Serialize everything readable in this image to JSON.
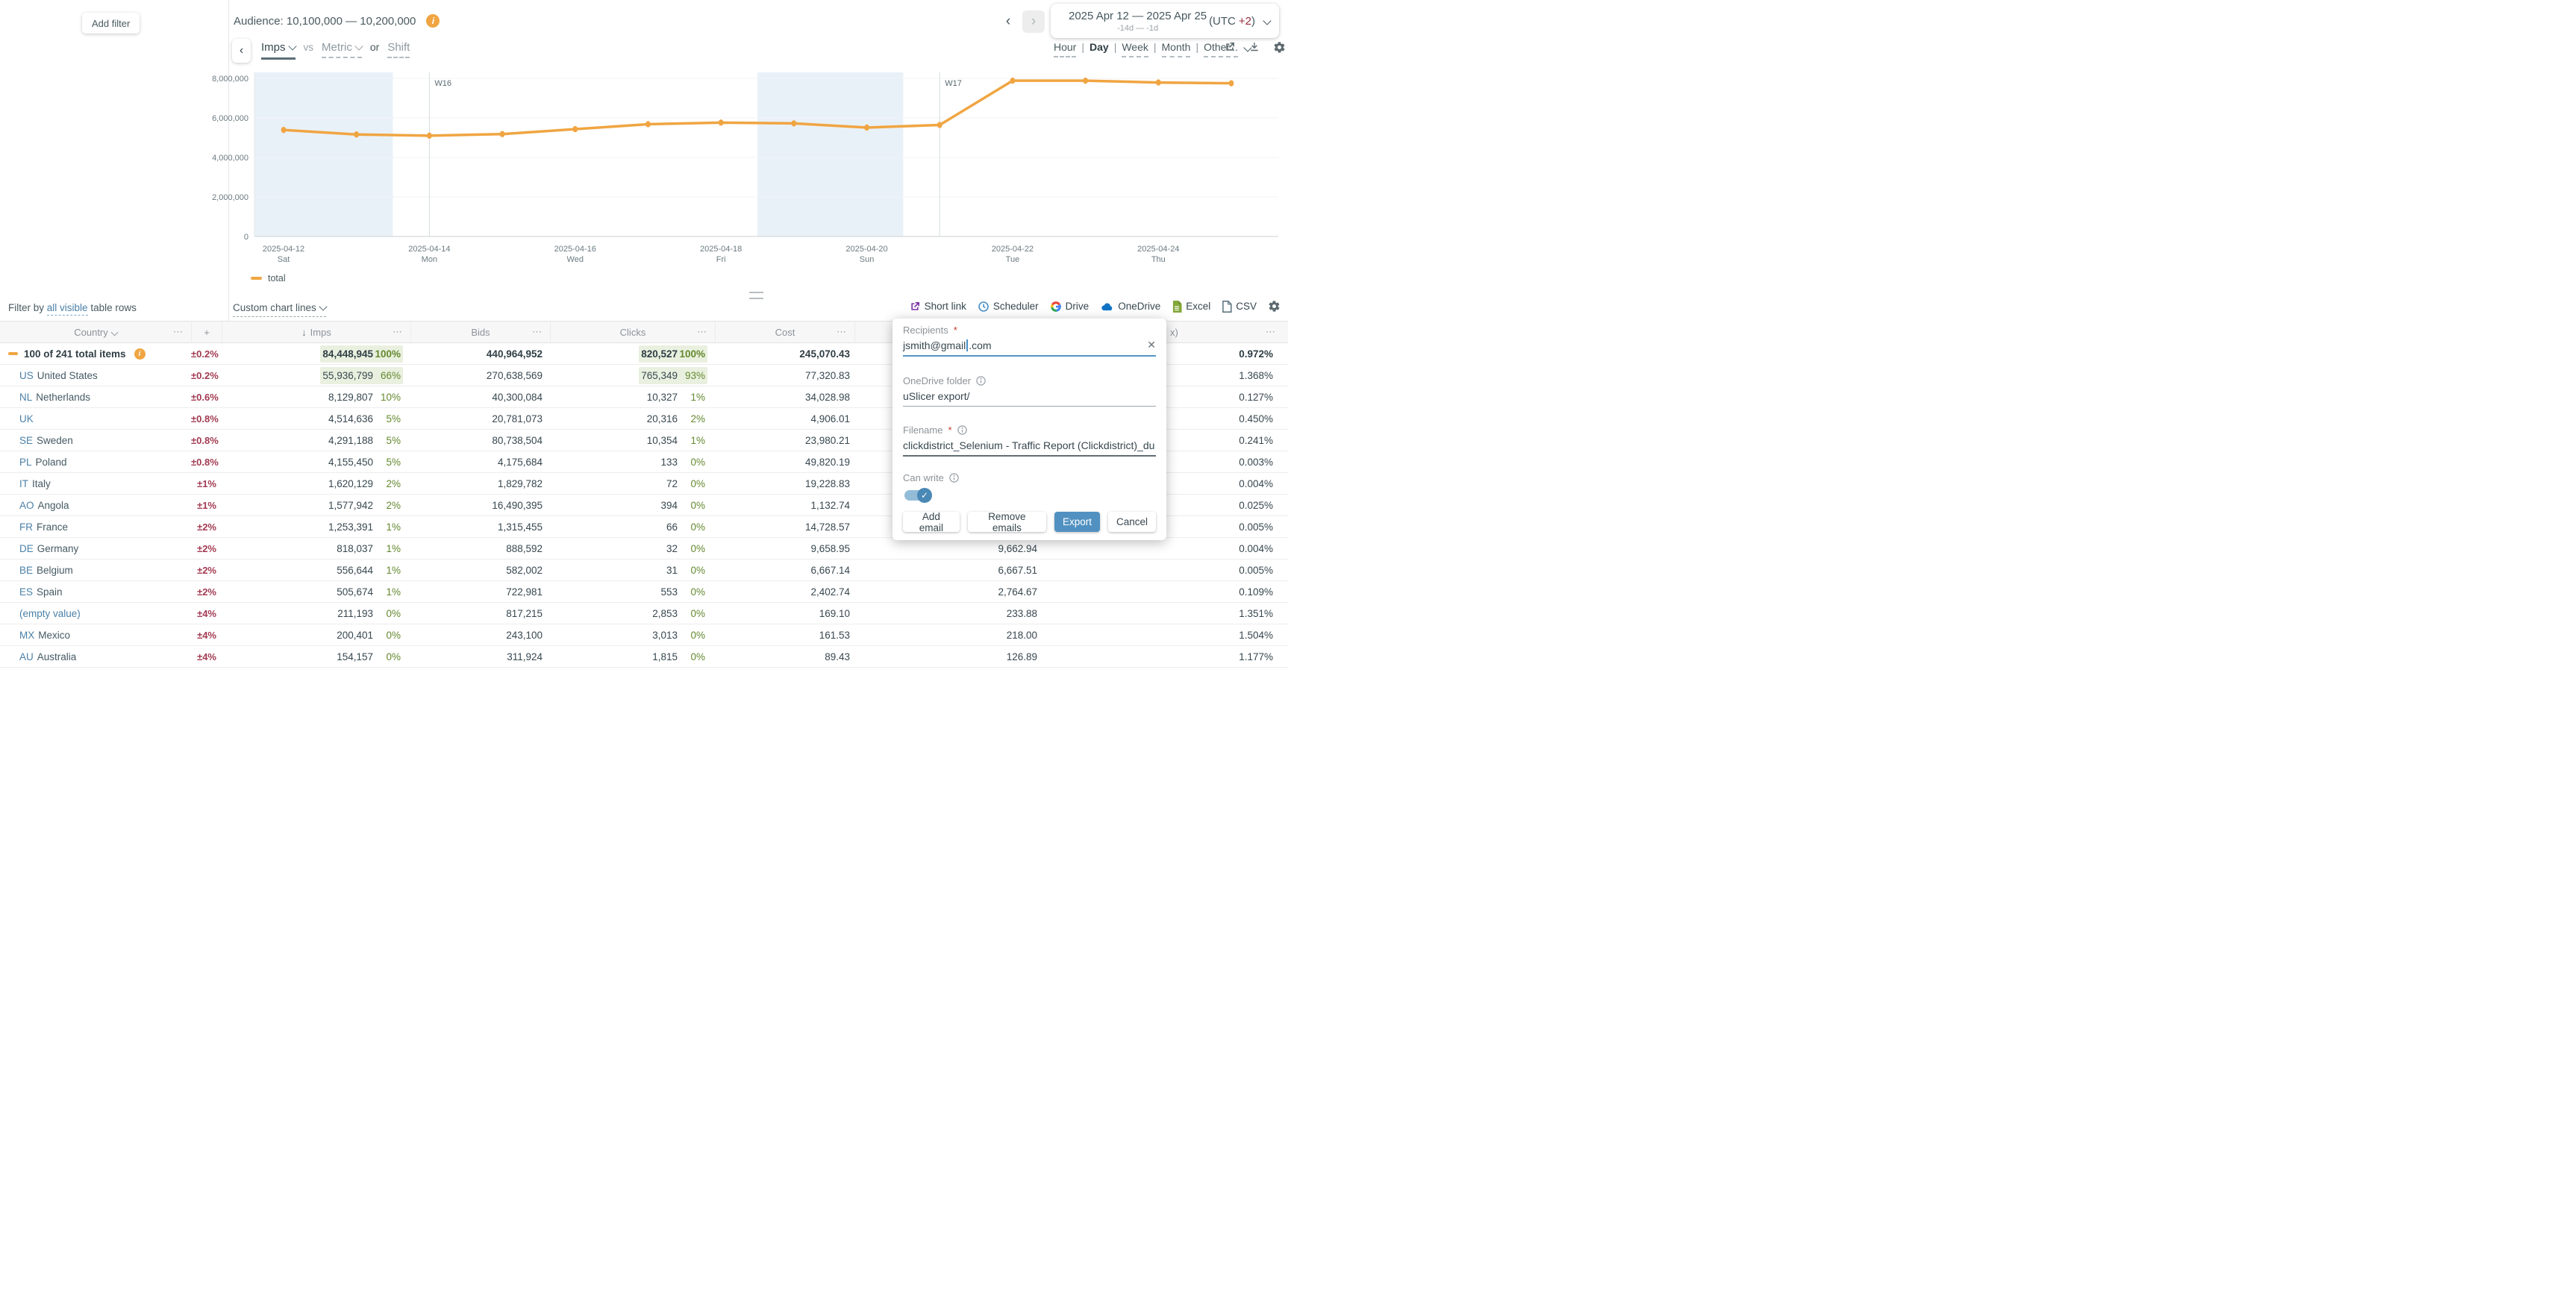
{
  "header": {
    "add_filter_label": "Add filter",
    "audience_label": "Audience: 10,100,000 — 10,200,000",
    "date_range": {
      "title": "2025 Apr 12 — 2025 Apr 25",
      "subtitle": "-14d — -1d",
      "utc_prefix": "(UTC",
      "utc_offset": "+2",
      "utc_suffix": ")"
    }
  },
  "chart_controls": {
    "primary_metric": "Imps",
    "vs_label": "vs",
    "compare_placeholder": "Metric",
    "or_label": "or",
    "shift_label": "Shift",
    "granularity": {
      "options": [
        "Hour",
        "Day",
        "Week",
        "Month",
        "Other..."
      ],
      "selected": "Day"
    }
  },
  "chart_data": {
    "type": "line",
    "x": [
      "2025-04-12",
      "2025-04-13",
      "2025-04-14",
      "2025-04-15",
      "2025-04-16",
      "2025-04-17",
      "2025-04-18",
      "2025-04-19",
      "2025-04-20",
      "2025-04-21",
      "2025-04-22",
      "2025-04-23",
      "2025-04-24",
      "2025-04-25"
    ],
    "series": [
      {
        "name": "total",
        "color": "#F0A542",
        "values": [
          5390000,
          5160000,
          5100000,
          5180000,
          5430000,
          5680000,
          5760000,
          5720000,
          5510000,
          5640000,
          7880000,
          7880000,
          7790000,
          7750000
        ]
      }
    ],
    "ylim": [
      0,
      8000000
    ],
    "y_ticks": [
      {
        "value": 0,
        "label": "0"
      },
      {
        "value": 2000000,
        "label": "2,000,000"
      },
      {
        "value": 4000000,
        "label": "4,000,000"
      },
      {
        "value": 6000000,
        "label": "6,000,000"
      },
      {
        "value": 8000000,
        "label": "8,000,000"
      }
    ],
    "x_ticks": [
      {
        "index": 0,
        "date": "2025-04-12",
        "weekday": "Sat"
      },
      {
        "index": 2,
        "date": "2025-04-14",
        "weekday": "Mon"
      },
      {
        "index": 4,
        "date": "2025-04-16",
        "weekday": "Wed"
      },
      {
        "index": 6,
        "date": "2025-04-18",
        "weekday": "Fri"
      },
      {
        "index": 8,
        "date": "2025-04-20",
        "weekday": "Sun"
      },
      {
        "index": 10,
        "date": "2025-04-22",
        "weekday": "Tue"
      },
      {
        "index": 12,
        "date": "2025-04-24",
        "weekday": "Thu"
      }
    ],
    "week_markers": [
      {
        "index": 2,
        "label": "W16"
      },
      {
        "index": 9,
        "label": "W17"
      }
    ],
    "weekend_bands": [
      [
        0,
        1
      ],
      [
        7,
        8
      ]
    ],
    "legend": [
      {
        "name": "total",
        "color": "#F0A542"
      }
    ],
    "grid": true,
    "legend_position": "bottom-left"
  },
  "filter_bar": {
    "prefix": "Filter by",
    "link": "all visible",
    "suffix": "table rows",
    "custom_chart_lines": "Custom chart lines"
  },
  "export_toolbar": {
    "items": [
      {
        "icon": "short-link-icon",
        "label": "Short link"
      },
      {
        "icon": "scheduler-clock-icon",
        "label": "Scheduler"
      },
      {
        "icon": "google-drive-icon",
        "label": "Drive"
      },
      {
        "icon": "onedrive-cloud-icon",
        "label": "OneDrive"
      },
      {
        "icon": "excel-file-icon",
        "label": "Excel"
      },
      {
        "icon": "csv-file-icon",
        "label": "CSV"
      }
    ]
  },
  "glyphs": {
    "add_column": "+",
    "sort_desc": "↓",
    "overflow_menu": "⋯"
  },
  "table": {
    "columns": {
      "country": "Country",
      "imps": "Imps",
      "bids": "Bids",
      "clicks": "Clicks",
      "cost": "Cost",
      "right_partial": "x)"
    },
    "rows": [
      {
        "type": "total",
        "label": "100 of 241 total items",
        "pm": "±0.2%",
        "imps": "84,448,945",
        "imps_pct": "100%",
        "imps_hl": true,
        "bids": "440,964,952",
        "clicks": "820,527",
        "clicks_pct": "100%",
        "clicks_hl": true,
        "cost": "245,070.43",
        "mid": null,
        "ctr": "0.972%"
      },
      {
        "code": "US",
        "name": "United States",
        "pm": "±0.2%",
        "imps": "55,936,799",
        "imps_pct": "66%",
        "imps_hl": true,
        "bids": "270,638,569",
        "clicks": "765,349",
        "clicks_pct": "93%",
        "clicks_hl": true,
        "cost": "77,320.83",
        "mid": null,
        "ctr": "1.368%"
      },
      {
        "code": "NL",
        "name": "Netherlands",
        "pm": "±0.6%",
        "imps": "8,129,807",
        "imps_pct": "10%",
        "bids": "40,300,084",
        "clicks": "10,327",
        "clicks_pct": "1%",
        "cost": "34,028.98",
        "mid": null,
        "ctr": "0.127%"
      },
      {
        "code": "UK",
        "name": "",
        "pm": "±0.8%",
        "imps": "4,514,636",
        "imps_pct": "5%",
        "bids": "20,781,073",
        "clicks": "20,316",
        "clicks_pct": "2%",
        "cost": "4,906.01",
        "mid": null,
        "ctr": "0.450%"
      },
      {
        "code": "SE",
        "name": "Sweden",
        "pm": "±0.8%",
        "imps": "4,291,188",
        "imps_pct": "5%",
        "bids": "80,738,504",
        "clicks": "10,354",
        "clicks_pct": "1%",
        "cost": "23,980.21",
        "mid": null,
        "ctr": "0.241%"
      },
      {
        "code": "PL",
        "name": "Poland",
        "pm": "±0.8%",
        "imps": "4,155,450",
        "imps_pct": "5%",
        "bids": "4,175,684",
        "clicks": "133",
        "clicks_pct": "0%",
        "cost": "49,820.19",
        "mid": null,
        "ctr": "0.003%"
      },
      {
        "code": "IT",
        "name": "Italy",
        "pm": "±1%",
        "imps": "1,620,129",
        "imps_pct": "2%",
        "bids": "1,829,782",
        "clicks": "72",
        "clicks_pct": "0%",
        "cost": "19,228.83",
        "mid": null,
        "ctr": "0.004%"
      },
      {
        "code": "AO",
        "name": "Angola",
        "pm": "±1%",
        "imps": "1,577,942",
        "imps_pct": "2%",
        "bids": "16,490,395",
        "clicks": "394",
        "clicks_pct": "0%",
        "cost": "1,132.74",
        "mid": null,
        "ctr": "0.025%"
      },
      {
        "code": "FR",
        "name": "France",
        "pm": "±2%",
        "imps": "1,253,391",
        "imps_pct": "1%",
        "bids": "1,315,455",
        "clicks": "66",
        "clicks_pct": "0%",
        "cost": "14,728.57",
        "mid": null,
        "ctr": "0.005%"
      },
      {
        "code": "DE",
        "name": "Germany",
        "pm": "±2%",
        "imps": "818,037",
        "imps_pct": "1%",
        "bids": "888,592",
        "clicks": "32",
        "clicks_pct": "0%",
        "cost": "9,658.95",
        "mid": "9,662.94",
        "ctr": "0.004%"
      },
      {
        "code": "BE",
        "name": "Belgium",
        "pm": "±2%",
        "imps": "556,644",
        "imps_pct": "1%",
        "bids": "582,002",
        "clicks": "31",
        "clicks_pct": "0%",
        "cost": "6,667.14",
        "mid": "6,667.51",
        "ctr": "0.005%"
      },
      {
        "code": "ES",
        "name": "Spain",
        "pm": "±2%",
        "imps": "505,674",
        "imps_pct": "1%",
        "bids": "722,981",
        "clicks": "553",
        "clicks_pct": "0%",
        "cost": "2,402.74",
        "mid": "2,764.67",
        "ctr": "0.109%"
      },
      {
        "code": "(empty value)",
        "name": "",
        "pm": "±4%",
        "imps": "211,193",
        "imps_pct": "0%",
        "bids": "817,215",
        "clicks": "2,853",
        "clicks_pct": "0%",
        "cost": "169.10",
        "mid": "233.88",
        "ctr": "1.351%"
      },
      {
        "code": "MX",
        "name": "Mexico",
        "pm": "±4%",
        "imps": "200,401",
        "imps_pct": "0%",
        "bids": "243,100",
        "clicks": "3,013",
        "clicks_pct": "0%",
        "cost": "161.53",
        "mid": "218.00",
        "ctr": "1.504%"
      },
      {
        "code": "AU",
        "name": "Australia",
        "pm": "±4%",
        "imps": "154,157",
        "imps_pct": "0%",
        "bids": "311,924",
        "clicks": "1,815",
        "clicks_pct": "0%",
        "cost": "89.43",
        "mid": "126.89",
        "ctr": "1.177%"
      }
    ]
  },
  "export_dialog": {
    "recipients_label": "Recipients",
    "required_marker": "*",
    "recipients_value": "jsmith@gmail.com",
    "caret_at": 12,
    "onedrive_label": "OneDrive folder",
    "onedrive_value": "uSlicer export/",
    "filename_label": "Filename",
    "filename_value": "clickdistrict_Selenium - Traffic Report (Clickdistrict)_du",
    "can_write_label": "Can write",
    "can_write_on": true,
    "buttons": {
      "add_email": "Add email",
      "remove_emails": "Remove emails",
      "export": "Export",
      "cancel": "Cancel"
    }
  },
  "colors": {
    "accent_orange": "#F0A542",
    "accent_blue": "#5191C1",
    "pct_green": "#64892F",
    "pm_red": "#A33B52",
    "link_blue": "#4B80A8",
    "highlight_green": "#E9F0DF",
    "weekend_band": "#E9F1F8"
  }
}
